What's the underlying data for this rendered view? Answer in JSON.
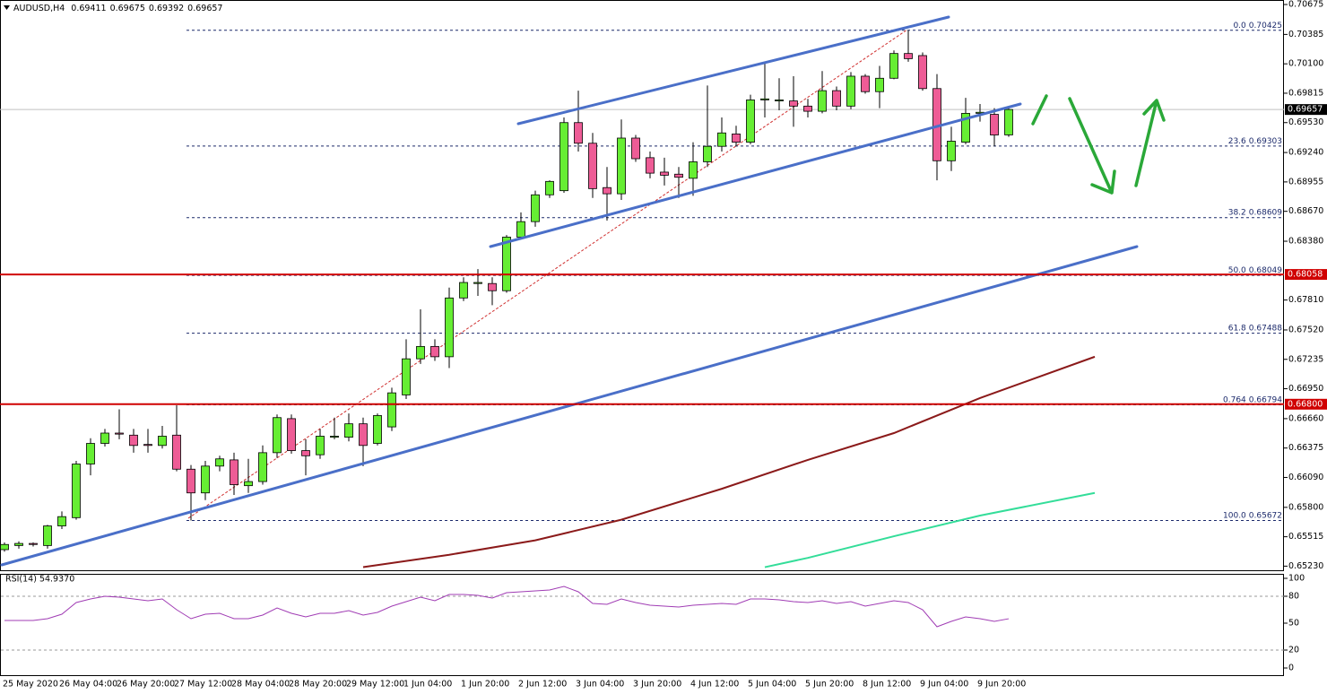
{
  "chart_data": {
    "type": "candlestick",
    "title": "AUDUSD,H4",
    "up_color": "#66ee33",
    "down_color": "#ee5c96",
    "ylim": [
      0.6519,
      0.7071
    ],
    "yticks": [
      0.70675,
      0.70385,
      {
        "value": 0.701,
        "label": "0.70100"
      },
      0.69815,
      {
        "value": 0.6953,
        "label": "0.69530"
      },
      {
        "value": 0.6924,
        "label": "0.69240"
      },
      0.68955,
      {
        "value": 0.6867,
        "label": "0.68670"
      },
      {
        "value": 0.6838,
        "label": "0.68380"
      },
      {
        "value": 0.6781,
        "label": "0.67810"
      },
      {
        "value": 0.6752,
        "label": "0.67520"
      },
      0.67235,
      {
        "value": 0.6695,
        "label": "0.66950"
      },
      {
        "value": 0.6666,
        "label": "0.66660"
      },
      0.66375,
      {
        "value": 0.6609,
        "label": "0.66090"
      },
      {
        "value": 0.658,
        "label": "0.65800"
      },
      0.65515,
      {
        "value": 0.6523,
        "label": "0.65230"
      }
    ],
    "x_labels": [
      "25 May 2020",
      "26 May 04:00",
      "26 May 20:00",
      "27 May 12:00",
      "28 May 04:00",
      "28 May 20:00",
      "29 May 12:00",
      "1 Jun 04:00",
      "1 Jun 20:00",
      "2 Jun 12:00",
      "3 Jun 04:00",
      "3 Jun 20:00",
      "4 Jun 12:00",
      "5 Jun 04:00",
      "5 Jun 20:00",
      "8 Jun 12:00",
      "9 Jun 04:00",
      "9 Jun 20:00"
    ],
    "open": [
      0.6539,
      0.6543,
      0.6545,
      0.6543,
      0.6562,
      0.657,
      0.6622,
      0.6642,
      0.6652,
      0.665,
      0.6641,
      0.664,
      0.665,
      0.6617,
      0.6594,
      0.662,
      0.6626,
      0.6601,
      0.6605,
      0.6633,
      0.6666,
      0.6635,
      0.6631,
      0.6648,
      0.6648,
      0.6661,
      0.6642,
      0.6658,
      0.6689,
      0.6724,
      0.6736,
      0.6726,
      0.6783,
      0.6797,
      0.6797,
      0.679,
      0.6842,
      0.6857,
      0.6883,
      0.6887,
      0.6953,
      0.6933,
      0.689,
      0.6884,
      0.6938,
      0.6919,
      0.6905,
      0.6903,
      0.6899,
      0.6915,
      0.693,
      0.6942,
      0.6934,
      0.6975,
      0.6974,
      0.6974,
      0.6969,
      0.6964,
      0.6984,
      0.6969,
      0.6998,
      0.6983,
      0.6996,
      0.702,
      0.7018,
      0.6986,
      0.6916,
      0.6934,
      0.6962,
      0.6961,
      0.69411
    ],
    "high": [
      0.6546,
      0.6547,
      0.6546,
      0.6563,
      0.6576,
      0.6625,
      0.6647,
      0.6656,
      0.6675,
      0.6656,
      0.6656,
      0.6659,
      0.6679,
      0.6621,
      0.6625,
      0.663,
      0.6633,
      0.6627,
      0.664,
      0.667,
      0.667,
      0.6646,
      0.6656,
      0.6667,
      0.6671,
      0.6667,
      0.6671,
      0.6696,
      0.6743,
      0.6772,
      0.6743,
      0.6793,
      0.6803,
      0.6811,
      0.6803,
      0.6844,
      0.6866,
      0.6887,
      0.6897,
      0.6958,
      0.6984,
      0.6943,
      0.691,
      0.6956,
      0.6941,
      0.6925,
      0.6919,
      0.691,
      0.6934,
      0.6989,
      0.6958,
      0.695,
      0.698,
      0.7012,
      0.6996,
      0.6998,
      0.6976,
      0.7003,
      0.6988,
      0.7002,
      0.7,
      0.7008,
      0.7023,
      0.70425,
      0.7021,
      0.7,
      0.6949,
      0.6977,
      0.6971,
      0.6967,
      0.69675
    ],
    "low": [
      0.6537,
      0.654,
      0.6542,
      0.654,
      0.6559,
      0.6568,
      0.6611,
      0.6639,
      0.6646,
      0.6633,
      0.6633,
      0.6637,
      0.6615,
      0.65672,
      0.6587,
      0.6615,
      0.6592,
      0.6594,
      0.6602,
      0.6628,
      0.6632,
      0.6611,
      0.6627,
      0.6646,
      0.6644,
      0.662,
      0.664,
      0.6654,
      0.6685,
      0.6719,
      0.6722,
      0.6715,
      0.678,
      0.6785,
      0.6776,
      0.6788,
      0.6841,
      0.6852,
      0.688,
      0.6885,
      0.6925,
      0.688,
      0.6858,
      0.6878,
      0.6915,
      0.6899,
      0.6892,
      0.688,
      0.6882,
      0.691,
      0.6925,
      0.693,
      0.6932,
      0.6958,
      0.6965,
      0.6949,
      0.6958,
      0.6962,
      0.6965,
      0.6966,
      0.6981,
      0.6967,
      0.6995,
      0.7012,
      0.6984,
      0.6897,
      0.6906,
      0.6932,
      0.6954,
      0.693,
      0.69392
    ],
    "close": [
      0.6544,
      0.6545,
      0.6544,
      0.6562,
      0.6571,
      0.6622,
      0.6642,
      0.6652,
      0.6651,
      0.664,
      0.664,
      0.6649,
      0.6617,
      0.6594,
      0.662,
      0.6627,
      0.6602,
      0.6605,
      0.6633,
      0.6667,
      0.6635,
      0.663,
      0.6649,
      0.6649,
      0.6661,
      0.664,
      0.6669,
      0.6691,
      0.6724,
      0.6736,
      0.6726,
      0.6783,
      0.6798,
      0.6798,
      0.679,
      0.6842,
      0.6857,
      0.6883,
      0.6896,
      0.6953,
      0.6933,
      0.6889,
      0.6884,
      0.6938,
      0.6918,
      0.6904,
      0.6902,
      0.69,
      0.6915,
      0.693,
      0.6943,
      0.6934,
      0.6975,
      0.6976,
      0.6975,
      0.6969,
      0.6964,
      0.6984,
      0.6969,
      0.6998,
      0.6983,
      0.6996,
      0.702,
      0.7015,
      0.6986,
      0.6916,
      0.6935,
      0.6962,
      0.6963,
      0.6941,
      0.69657
    ],
    "last_price_color": "#000000",
    "hline_color": "#d00000",
    "hlines": [
      0.68058,
      {
        "value": 0.668,
        "label": "0.66800"
      }
    ],
    "fib_color": "#1c2a6b",
    "fib_levels": [
      {
        "level": "0.0",
        "value": 0.70425
      },
      {
        "level": "23.6",
        "value": 0.69303
      },
      {
        "level": "38.2",
        "value": 0.68609
      },
      {
        "level": "50.0",
        "value": 0.68049
      },
      {
        "level": "61.8",
        "value": 0.67488
      },
      {
        "level": "0.764",
        "value": 0.66794
      },
      {
        "level": "100.0",
        "value": 0.65672
      }
    ],
    "overlays": [
      {
        "color": "#8b1a1a",
        "x": [
          25,
          31,
          37,
          43,
          50,
          56,
          62,
          68,
          76
        ],
        "values": [
          0.6522,
          0.6534,
          0.6548,
          0.6568,
          0.6598,
          0.6626,
          0.6652,
          0.6686,
          0.6726
        ]
      },
      {
        "color": "#33dd99",
        "x": [
          53,
          56,
          62,
          68,
          76
        ],
        "values": [
          0.6522,
          0.6531,
          0.6552,
          0.6572,
          0.6594
        ]
      }
    ],
    "rsi": {
      "label": "RSI(14) 54.9370",
      "color": "#a03cb4",
      "ylim": [
        0,
        100
      ],
      "yticks": [
        0,
        20,
        50,
        80,
        100
      ],
      "levels": [
        20,
        80
      ],
      "values": [
        53,
        53,
        53,
        55,
        60,
        73,
        77,
        80,
        79,
        77,
        75,
        77,
        65,
        55,
        60,
        61,
        55,
        55,
        59,
        67,
        61,
        57,
        61,
        61,
        64,
        59,
        62,
        69,
        74,
        79,
        75,
        82,
        82,
        81,
        78,
        84,
        85,
        86,
        87,
        91,
        85,
        72,
        71,
        77,
        73,
        70,
        69,
        68,
        70,
        71,
        72,
        71,
        77,
        77,
        76,
        74,
        73,
        75,
        72,
        74,
        69,
        72,
        75,
        73,
        65,
        46,
        52,
        57,
        55,
        52,
        54.937
      ]
    }
  }
}
